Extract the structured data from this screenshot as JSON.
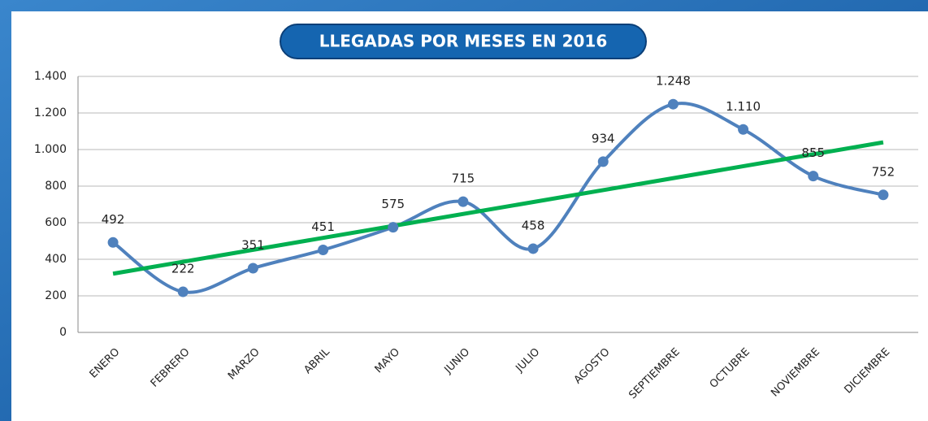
{
  "chart_data": {
    "type": "line",
    "title": "LLEGADAS POR MESES EN 2016",
    "categories": [
      "ENERO",
      "FEBRERO",
      "MARZO",
      "ABRIL",
      "MAYO",
      "JUNIO",
      "JULIO",
      "AGOSTO",
      "SEPTIEMBRE",
      "OCTUBRE",
      "NOVIEMBRE",
      "DICIEMBRE"
    ],
    "values": [
      492,
      222,
      351,
      451,
      575,
      715,
      458,
      934,
      1248,
      1110,
      855,
      752
    ],
    "value_labels": [
      "492",
      "222",
      "351",
      "451",
      "575",
      "715",
      "458",
      "934",
      "1.248",
      "1.110",
      "855",
      "752"
    ],
    "color": "#4f81bd",
    "smooth": true,
    "trendline": "linear",
    "trendline_color": "#00b050",
    "ylim": [
      0,
      1400
    ],
    "yticks": [
      0,
      200,
      400,
      600,
      800,
      {
        "value": 1000,
        "label": "1.000"
      },
      {
        "value": 1200,
        "label": "1.200"
      },
      {
        "value": 1400,
        "label": "1.400"
      }
    ],
    "grid": true
  }
}
